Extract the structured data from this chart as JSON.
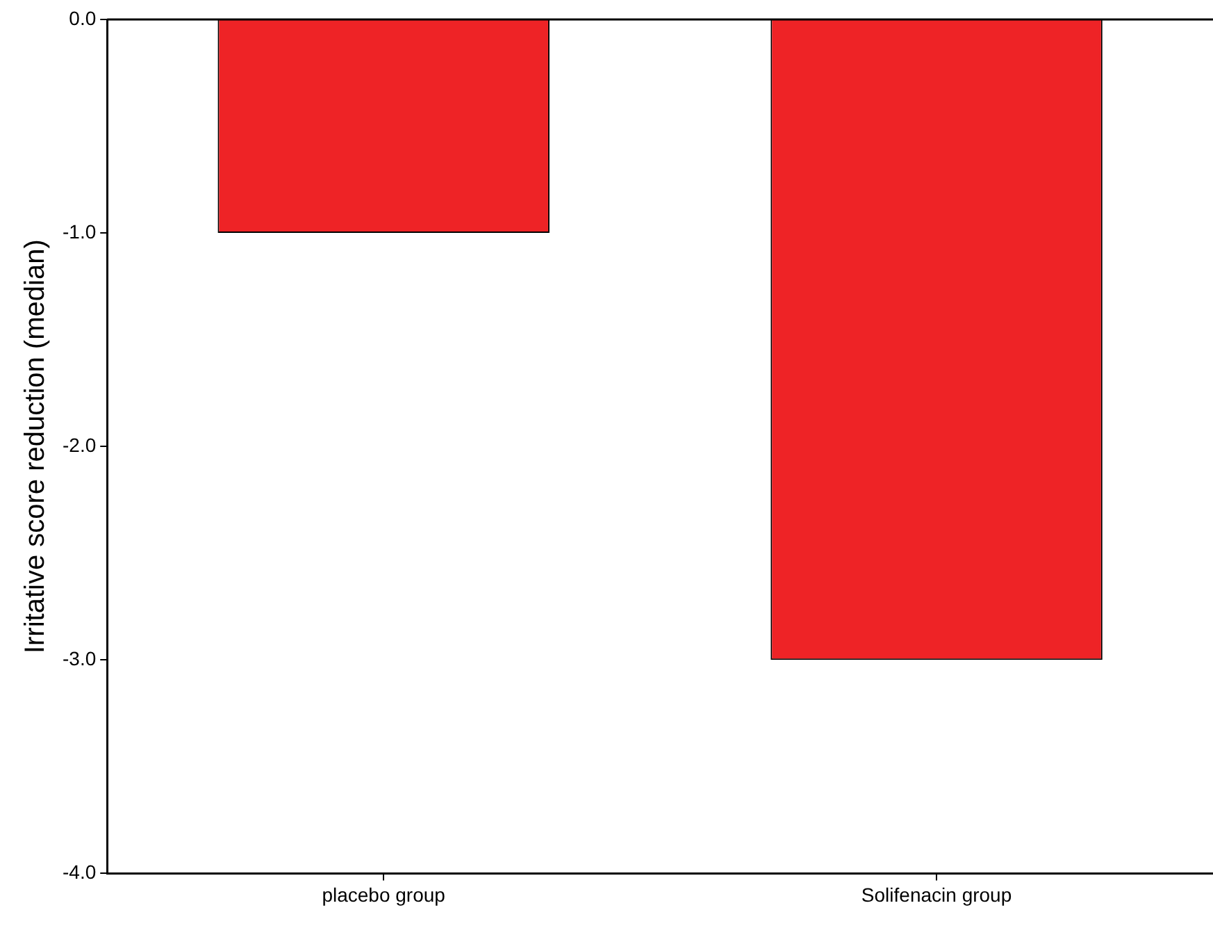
{
  "chart_data": {
    "type": "bar",
    "ylabel": "Irritative score reduction (median)",
    "categories": [
      "placebo group",
      "Solifenacin group"
    ],
    "values": [
      -1.0,
      -3.0
    ],
    "color": "#ee2326",
    "ylim": [
      -4,
      0
    ],
    "yticks": [
      {
        "value": -4,
        "label": "-4.0"
      },
      {
        "value": -3,
        "label": "-3.0"
      },
      {
        "value": -2,
        "label": "-2.0"
      },
      {
        "value": -1,
        "label": "-1.0"
      },
      {
        "value": 0,
        "label": "0.0"
      }
    ],
    "grid": false,
    "legend": false
  }
}
